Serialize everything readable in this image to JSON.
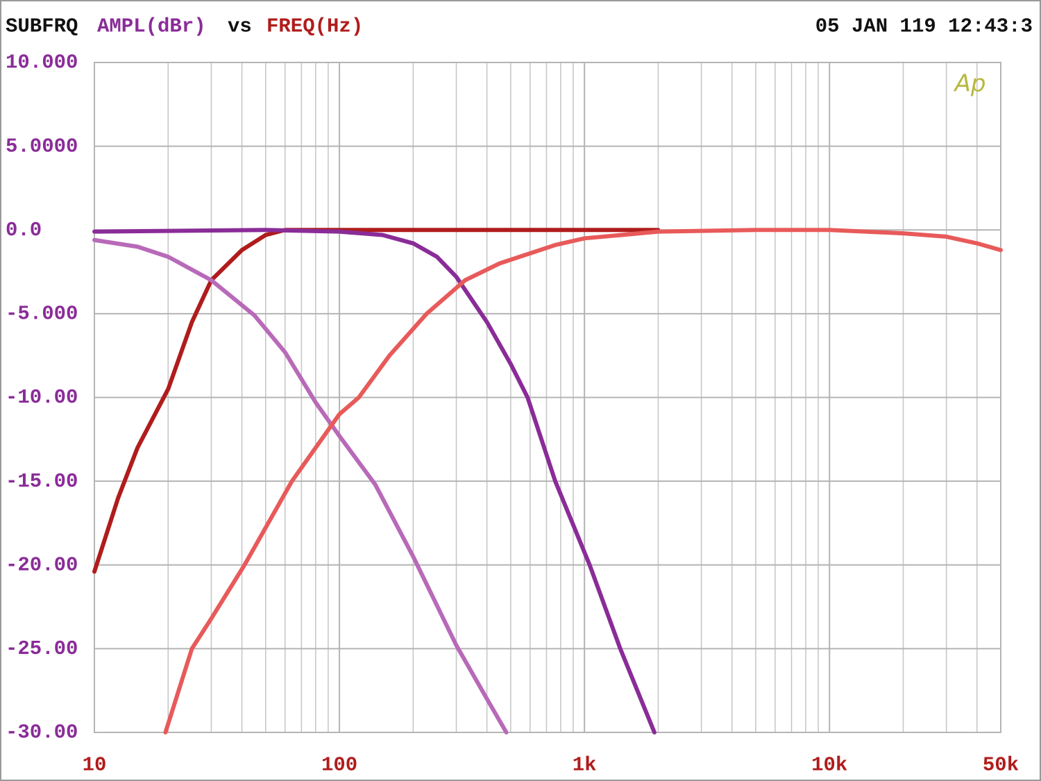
{
  "chart_data": {
    "type": "line",
    "title_prefix": "SUBFRQ",
    "ylabel": "AMPL(dBr)",
    "title_joiner": "vs",
    "xlabel": "FREQ(Hz)",
    "timestamp": "05 JAN 119 12:43:3",
    "logo": "Ap",
    "xscale": "log",
    "grid": true,
    "xlim": [
      10,
      50000
    ],
    "ylim": [
      -30,
      10
    ],
    "xticks": [
      10,
      100,
      {
        "value": 1000,
        "label": "1k"
      },
      {
        "value": 10000,
        "label": "10k"
      },
      {
        "value": 50000,
        "label": "50k"
      }
    ],
    "yticks": [
      {
        "value": 10,
        "label": "10.000"
      },
      {
        "value": 5,
        "label": "5.0000"
      },
      {
        "value": 0,
        "label": "0.0"
      },
      {
        "value": -5,
        "label": "-5.000"
      },
      {
        "value": -10,
        "label": "-10.00"
      },
      {
        "value": -15,
        "label": "-15.00"
      },
      {
        "value": -20,
        "label": "-20.00"
      },
      {
        "value": -25,
        "label": "-25.00"
      },
      {
        "value": -30,
        "label": "-30.00"
      }
    ],
    "series": [
      {
        "color": "#b01c1c",
        "x": [
          10,
          12.5,
          15,
          20,
          25,
          30,
          40,
          50,
          60,
          100,
          2000
        ],
        "values": [
          -20.4,
          -16,
          -13,
          -9.5,
          -5.5,
          -3,
          -1.2,
          -0.3,
          0,
          0,
          0
        ]
      },
      {
        "color": "#b86ab8",
        "x": [
          10,
          15,
          20,
          30,
          45,
          60,
          80,
          100,
          140,
          200,
          300,
          400,
          480
        ],
        "values": [
          -0.6,
          -1.0,
          -1.6,
          -3,
          -5.1,
          -7.3,
          -10.3,
          -12.3,
          -15.2,
          -19.5,
          -24.8,
          -28,
          -30
        ]
      },
      {
        "color": "#8a2c98",
        "x": [
          10,
          50,
          100,
          150,
          200,
          250,
          300,
          400,
          500,
          586,
          760,
          1050,
          1400,
          1930
        ],
        "values": [
          -0.1,
          0,
          -0.1,
          -0.3,
          -0.8,
          -1.6,
          -2.8,
          -5.5,
          -8,
          -10,
          -15,
          -20,
          -25,
          -30
        ]
      },
      {
        "color": "#e85a5a",
        "x": [
          19.5,
          25,
          30,
          41,
          64,
          100,
          120,
          160,
          227,
          326,
          450,
          760,
          1000,
          2000,
          5000,
          10000,
          20000,
          30000,
          40000,
          50000
        ],
        "values": [
          -30,
          -25,
          -23.2,
          -20,
          -15,
          -11,
          -10,
          -7.5,
          -5,
          -3,
          -2,
          -0.9,
          -0.5,
          -0.1,
          0,
          0,
          -0.2,
          -0.4,
          -0.8,
          -1.2
        ]
      }
    ]
  }
}
